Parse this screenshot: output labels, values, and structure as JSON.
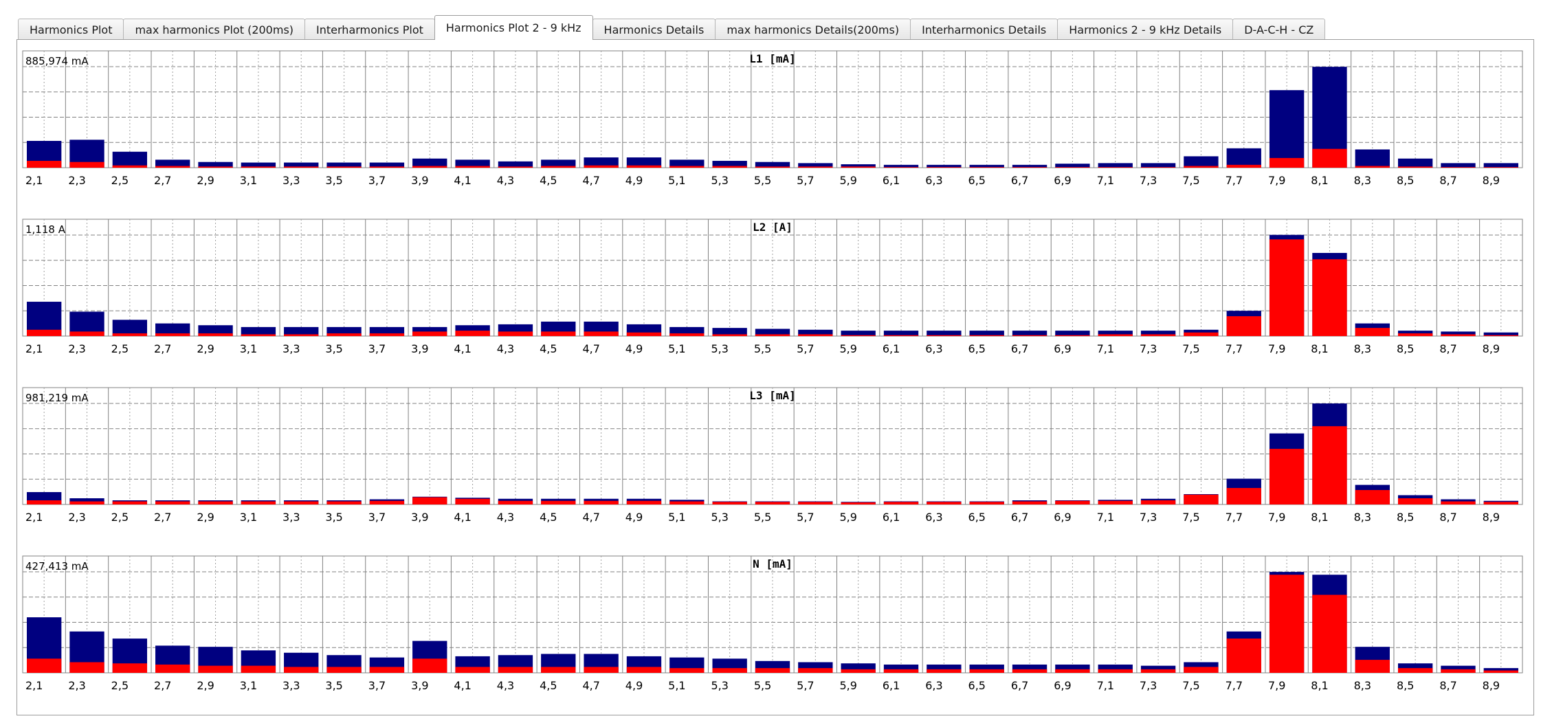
{
  "tabs": [
    {
      "label": "Harmonics Plot",
      "active": false
    },
    {
      "label": "max harmonics Plot (200ms)",
      "active": false
    },
    {
      "label": "Interharmonics Plot",
      "active": false
    },
    {
      "label": "Harmonics Plot 2 - 9 kHz",
      "active": true
    },
    {
      "label": "Harmonics Details",
      "active": false
    },
    {
      "label": "max harmonics Details(200ms)",
      "active": false
    },
    {
      "label": "Interharmonics Details",
      "active": false
    },
    {
      "label": "Harmonics 2 - 9 kHz Details",
      "active": false
    },
    {
      "label": "D-A-C-H - CZ",
      "active": false
    }
  ],
  "colors": {
    "red": "#ff0000",
    "navy": "#000080",
    "grid": "#808080",
    "dotted": "#a0a0a0"
  },
  "chart_data": [
    {
      "type": "bar",
      "title": "L1  [mA]",
      "max_label": "885,974 mA",
      "categories": [
        "2,1",
        "2,3",
        "2,5",
        "2,7",
        "2,9",
        "3,1",
        "3,3",
        "3,5",
        "3,7",
        "3,9",
        "4,1",
        "4,3",
        "4,5",
        "4,7",
        "4,9",
        "5,1",
        "5,3",
        "5,5",
        "5,7",
        "5,9",
        "6,1",
        "6,3",
        "6,5",
        "6,7",
        "6,9",
        "7,1",
        "7,3",
        "7,5",
        "7,7",
        "7,9",
        "8,1",
        "8,3",
        "8,5",
        "8,7",
        "8,9"
      ],
      "ylim": [
        0,
        885.974
      ],
      "series": [
        {
          "values": [
            60,
            50,
            20,
            15,
            10,
            10,
            10,
            10,
            10,
            15,
            15,
            10,
            15,
            20,
            20,
            15,
            15,
            10,
            10,
            10,
            5,
            5,
            5,
            5,
            5,
            5,
            5,
            15,
            25,
            85,
            165,
            15,
            10,
            5,
            5
          ]
        },
        {
          "values": [
            235,
            245,
            140,
            70,
            50,
            45,
            45,
            45,
            45,
            80,
            70,
            55,
            70,
            90,
            90,
            70,
            60,
            50,
            40,
            30,
            25,
            25,
            25,
            25,
            35,
            40,
            40,
            100,
            170,
            680,
            885,
            160,
            80,
            40,
            40
          ]
        }
      ]
    },
    {
      "type": "bar",
      "title": "L2  [A]",
      "max_label": "1,118 A",
      "categories": [
        "2,1",
        "2,3",
        "2,5",
        "2,7",
        "2,9",
        "3,1",
        "3,3",
        "3,5",
        "3,7",
        "3,9",
        "4,1",
        "4,3",
        "4,5",
        "4,7",
        "4,9",
        "5,1",
        "5,3",
        "5,5",
        "5,7",
        "5,9",
        "6,1",
        "6,3",
        "6,5",
        "6,7",
        "6,9",
        "7,1",
        "7,3",
        "7,5",
        "7,7",
        "7,9",
        "8,1",
        "8,3",
        "8,5",
        "8,7",
        "8,9"
      ],
      "ylim": [
        0,
        1.118
      ],
      "series": [
        {
          "values": [
            0.07,
            0.05,
            0.03,
            0.03,
            0.03,
            0.02,
            0.02,
            0.03,
            0.03,
            0.05,
            0.06,
            0.05,
            0.05,
            0.05,
            0.04,
            0.03,
            0.02,
            0.02,
            0.02,
            0.01,
            0.01,
            0.01,
            0.01,
            0.01,
            0.01,
            0.02,
            0.02,
            0.04,
            0.22,
            1.07,
            0.85,
            0.09,
            0.03,
            0.02,
            0.01
          ]
        },
        {
          "values": [
            0.38,
            0.27,
            0.18,
            0.14,
            0.12,
            0.1,
            0.1,
            0.1,
            0.1,
            0.1,
            0.12,
            0.13,
            0.16,
            0.16,
            0.13,
            0.1,
            0.09,
            0.08,
            0.07,
            0.06,
            0.06,
            0.06,
            0.06,
            0.06,
            0.06,
            0.06,
            0.06,
            0.07,
            0.28,
            1.12,
            0.92,
            0.14,
            0.06,
            0.05,
            0.04
          ]
        }
      ]
    },
    {
      "type": "bar",
      "title": "L3  [mA]",
      "max_label": "981,219 mA",
      "categories": [
        "2,1",
        "2,3",
        "2,5",
        "2,7",
        "2,9",
        "3,1",
        "3,3",
        "3,5",
        "3,7",
        "3,9",
        "4,1",
        "4,3",
        "4,5",
        "4,7",
        "4,9",
        "5,1",
        "5,3",
        "5,5",
        "5,7",
        "5,9",
        "6,1",
        "6,3",
        "6,5",
        "6,7",
        "6,9",
        "7,1",
        "7,3",
        "7,5",
        "7,7",
        "7,9",
        "8,1",
        "8,3",
        "8,5",
        "8,7",
        "8,9"
      ],
      "ylim": [
        0,
        981.219
      ],
      "series": [
        {
          "values": [
            40,
            30,
            30,
            30,
            30,
            30,
            30,
            30,
            35,
            70,
            55,
            35,
            35,
            35,
            35,
            30,
            25,
            25,
            25,
            20,
            25,
            25,
            25,
            30,
            35,
            35,
            40,
            95,
            160,
            540,
            760,
            140,
            60,
            30,
            25
          ]
        },
        {
          "values": [
            120,
            60,
            40,
            40,
            40,
            40,
            40,
            40,
            50,
            75,
            65,
            55,
            55,
            55,
            55,
            45,
            30,
            30,
            30,
            25,
            30,
            30,
            30,
            40,
            40,
            45,
            55,
            100,
            250,
            690,
            981,
            190,
            90,
            50,
            35
          ]
        }
      ]
    },
    {
      "type": "bar",
      "title": "N  [mA]",
      "max_label": "427,413 mA",
      "categories": [
        "2,1",
        "2,3",
        "2,5",
        "2,7",
        "2,9",
        "3,1",
        "3,3",
        "3,5",
        "3,7",
        "3,9",
        "4,1",
        "4,3",
        "4,5",
        "4,7",
        "4,9",
        "5,1",
        "5,3",
        "5,5",
        "5,7",
        "5,9",
        "6,1",
        "6,3",
        "6,5",
        "6,7",
        "6,9",
        "7,1",
        "7,3",
        "7,5",
        "7,7",
        "7,9",
        "8,1",
        "8,3",
        "8,5",
        "8,7",
        "8,9"
      ],
      "ylim": [
        0,
        427.413
      ],
      "series": [
        {
          "values": [
            60,
            45,
            40,
            35,
            30,
            30,
            25,
            25,
            25,
            60,
            25,
            25,
            25,
            25,
            25,
            20,
            20,
            20,
            20,
            15,
            15,
            15,
            15,
            15,
            15,
            15,
            15,
            25,
            145,
            415,
            330,
            55,
            20,
            15,
            10
          ]
        },
        {
          "values": [
            235,
            175,
            145,
            115,
            110,
            95,
            85,
            75,
            65,
            135,
            70,
            75,
            80,
            80,
            70,
            65,
            60,
            50,
            45,
            40,
            35,
            35,
            35,
            35,
            35,
            35,
            30,
            45,
            175,
            427,
            415,
            110,
            40,
            30,
            20
          ]
        }
      ]
    }
  ]
}
